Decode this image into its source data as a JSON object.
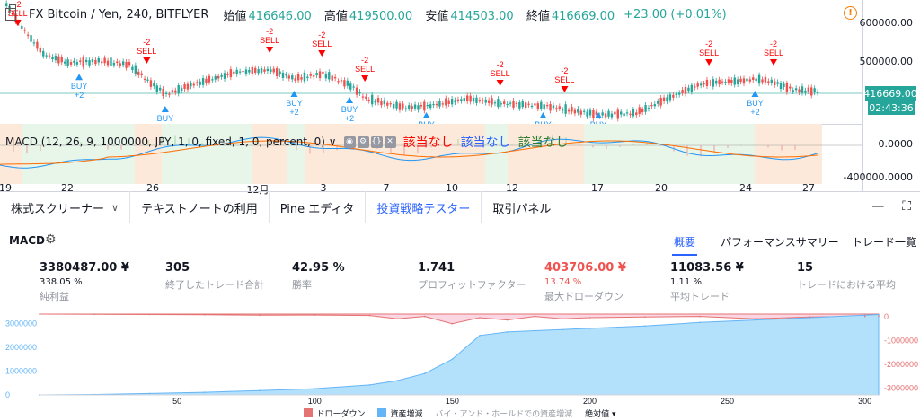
{
  "chart": {
    "symbol": "FX Bitcoin / Yen, 240, BITFLYER",
    "ohlc": [
      {
        "label": "始値",
        "value": "416646.00"
      },
      {
        "label": "高値",
        "value": "419500.00"
      },
      {
        "label": "安値",
        "value": "414503.00"
      },
      {
        "label": "終値",
        "value": "416669.00"
      }
    ],
    "change": "+23.00 (+0.01%)",
    "price_axis_labels": [
      "600000.00",
      "500000.00"
    ],
    "last_price_tag": "416669.00",
    "countdown_tag": "02:43:36",
    "macd_axis_labels": [
      "0.0000",
      "-400000.0000"
    ],
    "time_labels": [
      "19",
      "22",
      "26",
      "12月",
      "3",
      "7",
      "10",
      "12",
      "17",
      "20",
      "24",
      "27"
    ],
    "colors": {
      "up": "#26a69a",
      "down": "#ef5350",
      "buy": "#2196f3",
      "sell": "#ff0000",
      "macd": "#2196f3",
      "signal": "#ff6d00"
    },
    "signals": [
      {
        "kind": "sell",
        "text": "SELL",
        "qty": "-2",
        "bar": 4
      },
      {
        "kind": "buy",
        "text": "BUY",
        "qty": "+2",
        "bar": 24
      },
      {
        "kind": "sell",
        "text": "SELL",
        "qty": "-2",
        "bar": 46
      },
      {
        "kind": "buy",
        "text": "BUY",
        "qty": "+2",
        "bar": 52
      },
      {
        "kind": "sell",
        "text": "SELL",
        "qty": "-2",
        "bar": 86
      },
      {
        "kind": "buy",
        "text": "BUY",
        "qty": "+2",
        "bar": 94
      },
      {
        "kind": "sell",
        "text": "SELL",
        "qty": "-2",
        "bar": 103
      },
      {
        "kind": "buy",
        "text": "BUY",
        "qty": "+2",
        "bar": 112
      },
      {
        "kind": "sell",
        "text": "SELL",
        "qty": "-2",
        "bar": 117
      },
      {
        "kind": "buy",
        "text": "BUY",
        "qty": "+2",
        "bar": 137
      },
      {
        "kind": "sell",
        "text": "SELL",
        "qty": "-2",
        "bar": 161
      },
      {
        "kind": "buy",
        "text": "BUY",
        "qty": "",
        "bar": 175
      },
      {
        "kind": "sell",
        "text": "SELL",
        "qty": "-2",
        "bar": 182
      },
      {
        "kind": "buy",
        "text": "BUY",
        "qty": "",
        "bar": 193
      },
      {
        "kind": "sell",
        "text": "SELL",
        "qty": "-2",
        "bar": 229
      },
      {
        "kind": "buy",
        "text": "BUY",
        "qty": "+2",
        "bar": 244
      },
      {
        "kind": "sell",
        "text": "SELL",
        "qty": "-2",
        "bar": 250
      }
    ]
  },
  "macd": {
    "legend": "MACD (12, 26, 9, 1000000, JPY, 1, 0, fixed, 1, 0, percent, 0) ∨",
    "buttons": [
      "◉",
      "⚙",
      "{}",
      "✕"
    ],
    "na_labels": [
      {
        "text": "該当なし",
        "color": "#ff0000"
      },
      {
        "text": "該当なし",
        "color": "#2962ff"
      },
      {
        "text": "該当なし",
        "color": "#2e7d32"
      }
    ]
  },
  "bottom_tabs": [
    {
      "label": "株式スクリーナー",
      "chevron": "∨"
    },
    {
      "label": "テキストノートの利用",
      "chevron": ""
    },
    {
      "label": "Pine エディタ",
      "chevron": ""
    },
    {
      "label": "投資戦略テスター",
      "chevron": ""
    },
    {
      "label": "取引パネル",
      "chevron": ""
    }
  ],
  "panel_controls": {
    "minimize": "—",
    "maximize": "⛶"
  },
  "strategy": {
    "name": "MACD",
    "tabs": [
      "概要",
      "パフォーマンスサマリー",
      "トレード一覧"
    ]
  },
  "stats": [
    {
      "value": "3380487.00 ¥",
      "sub": "338.05 %",
      "label": "純利益",
      "red": false
    },
    {
      "value": "305",
      "sub": "",
      "label": "終了したトレード合計",
      "red": false
    },
    {
      "value": "42.95 %",
      "sub": "",
      "label": "勝率",
      "red": false
    },
    {
      "value": "1.741",
      "sub": "",
      "label": "プロフィットファクター",
      "red": false
    },
    {
      "value": "403706.00 ¥",
      "sub": "13.74 %",
      "label": "最大ドローダウン",
      "red": true
    },
    {
      "value": "11083.56 ¥",
      "sub": "1.11 %",
      "label": "平均トレード",
      "red": false
    },
    {
      "value": "15",
      "sub": "",
      "label": "トレードにおける平均",
      "red": false
    }
  ],
  "chart_data": {
    "type": "area",
    "x": [
      0,
      20,
      40,
      60,
      80,
      100,
      120,
      130,
      140,
      150,
      160,
      170,
      180,
      190,
      200,
      220,
      240,
      260,
      280,
      300,
      305
    ],
    "series": [
      {
        "name": "資産増減",
        "values": [
          0,
          20000,
          60000,
          110000,
          180000,
          260000,
          420000,
          600000,
          900000,
          1500000,
          2500000,
          2650000,
          2700000,
          2750000,
          2800000,
          2900000,
          3050000,
          3150000,
          3250000,
          3350000,
          3380487
        ]
      },
      {
        "name": "ドローダウン",
        "values": [
          0,
          -10000,
          -20000,
          -30000,
          -50000,
          -40000,
          -60000,
          -200000,
          -100000,
          -403706,
          -150000,
          -250000,
          -100000,
          -200000,
          -150000,
          -120000,
          -100000,
          -200000,
          -120000,
          -100000,
          -80000
        ]
      }
    ],
    "x_ticks": [
      "50",
      "100",
      "150",
      "200",
      "250",
      "300"
    ],
    "left_ticks": [
      "3000000",
      "2000000",
      "1000000",
      "0"
    ],
    "right_ticks": [
      "0",
      "-1000000",
      "-2000000",
      "-3000000"
    ],
    "ylim": [
      0,
      3400000
    ],
    "y2lim": [
      -3400000,
      0
    ],
    "legend_position": "bottom"
  },
  "equity_legend": {
    "drawdown": "ドローダウン",
    "equity": "資産増減",
    "buy_hold": "バイ・アンド・ホールドでの資産増減",
    "mode": "絶対値 ▾",
    "drawdown_color": "#e57373",
    "equity_color": "#64b5f6"
  }
}
